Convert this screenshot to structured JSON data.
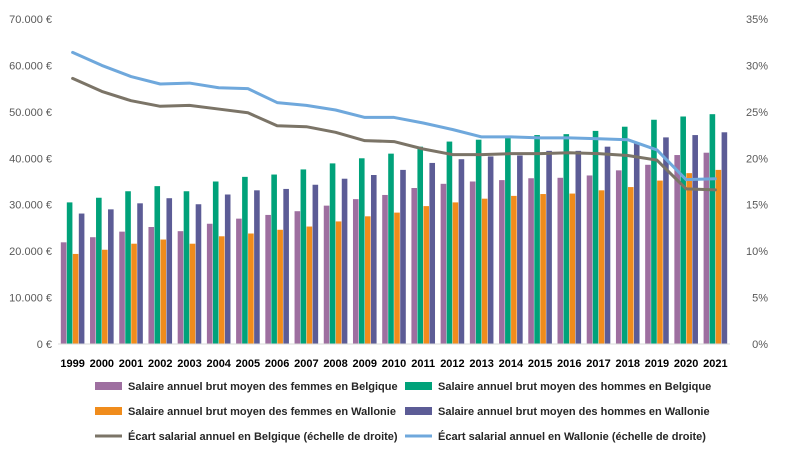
{
  "chart_data": {
    "type": "bar",
    "categories": [
      "1999",
      "2000",
      "2001",
      "2002",
      "2003",
      "2004",
      "2005",
      "2006",
      "2007",
      "2008",
      "2009",
      "2010",
      "2011",
      "2012",
      "2013",
      "2014",
      "2015",
      "2016",
      "2017",
      "2018",
      "2019",
      "2020",
      "2021"
    ],
    "title": "",
    "xlabel": "",
    "ylabel": "",
    "ylim": [
      0,
      70000
    ],
    "y2lim": [
      0,
      0.35
    ],
    "left_axis_ticks": [
      "0 €",
      "10.000 €",
      "20.000 €",
      "30.000 €",
      "40.000 €",
      "50.000 €",
      "60.000 €",
      "70.000 €"
    ],
    "right_axis_ticks": [
      "0%",
      "5%",
      "10%",
      "15%",
      "20%",
      "25%",
      "30%",
      "35%"
    ],
    "grid": false,
    "legend_position": "bottom",
    "series": [
      {
        "name": "Salaire annuel brut moyen des femmes en Belgique",
        "kind": "bar",
        "axis": "left",
        "color": "#9e6fa0",
        "values": [
          21900,
          23000,
          24200,
          25200,
          24300,
          25900,
          27000,
          27800,
          28600,
          29800,
          31200,
          32100,
          33600,
          34500,
          35000,
          35300,
          35700,
          35800,
          36300,
          37400,
          38600,
          40700,
          41200
        ]
      },
      {
        "name": "Salaire annuel brut moyen des hommes en Belgique",
        "kind": "bar",
        "axis": "left",
        "color": "#00a27a",
        "values": [
          30500,
          31500,
          32900,
          34000,
          32900,
          35000,
          36000,
          36500,
          37600,
          38900,
          40000,
          41000,
          42500,
          43600,
          44000,
          44500,
          45000,
          45200,
          45900,
          46800,
          48300,
          49000,
          49500
        ]
      },
      {
        "name": "Salaire annuel brut moyen des femmes en Wallonie",
        "kind": "bar",
        "axis": "left",
        "color": "#f08c1c",
        "values": [
          19400,
          20300,
          21600,
          22500,
          21600,
          23200,
          23800,
          24600,
          25300,
          26400,
          27500,
          28300,
          29700,
          30500,
          31300,
          31900,
          32300,
          32400,
          33100,
          33800,
          35200,
          36800,
          37500
        ]
      },
      {
        "name": "Salaire annuel brut moyen des hommes en Wallonie",
        "kind": "bar",
        "axis": "left",
        "color": "#5c5c96",
        "values": [
          28100,
          29000,
          30300,
          31400,
          30100,
          32200,
          33100,
          33400,
          34300,
          35600,
          36400,
          37500,
          39000,
          39800,
          40400,
          40600,
          41600,
          41600,
          42500,
          43400,
          44500,
          45000,
          45600
        ]
      },
      {
        "name": "Écart salarial annuel en Belgique (échelle de droite)",
        "kind": "line",
        "axis": "right",
        "color": "#7b7467",
        "values": [
          0.286,
          0.272,
          0.262,
          0.256,
          0.257,
          0.253,
          0.249,
          0.235,
          0.234,
          0.228,
          0.219,
          0.218,
          0.21,
          0.204,
          0.204,
          0.205,
          0.205,
          0.206,
          0.205,
          0.203,
          0.198,
          0.167,
          0.166
        ]
      },
      {
        "name": "Écart salarial annuel en Wallonie (échelle de droite)",
        "kind": "line",
        "axis": "right",
        "color": "#6fa8dc",
        "values": [
          0.314,
          0.3,
          0.288,
          0.28,
          0.281,
          0.276,
          0.275,
          0.26,
          0.257,
          0.252,
          0.244,
          0.244,
          0.238,
          0.231,
          0.223,
          0.223,
          0.222,
          0.222,
          0.221,
          0.22,
          0.209,
          0.177,
          0.178
        ]
      }
    ]
  }
}
